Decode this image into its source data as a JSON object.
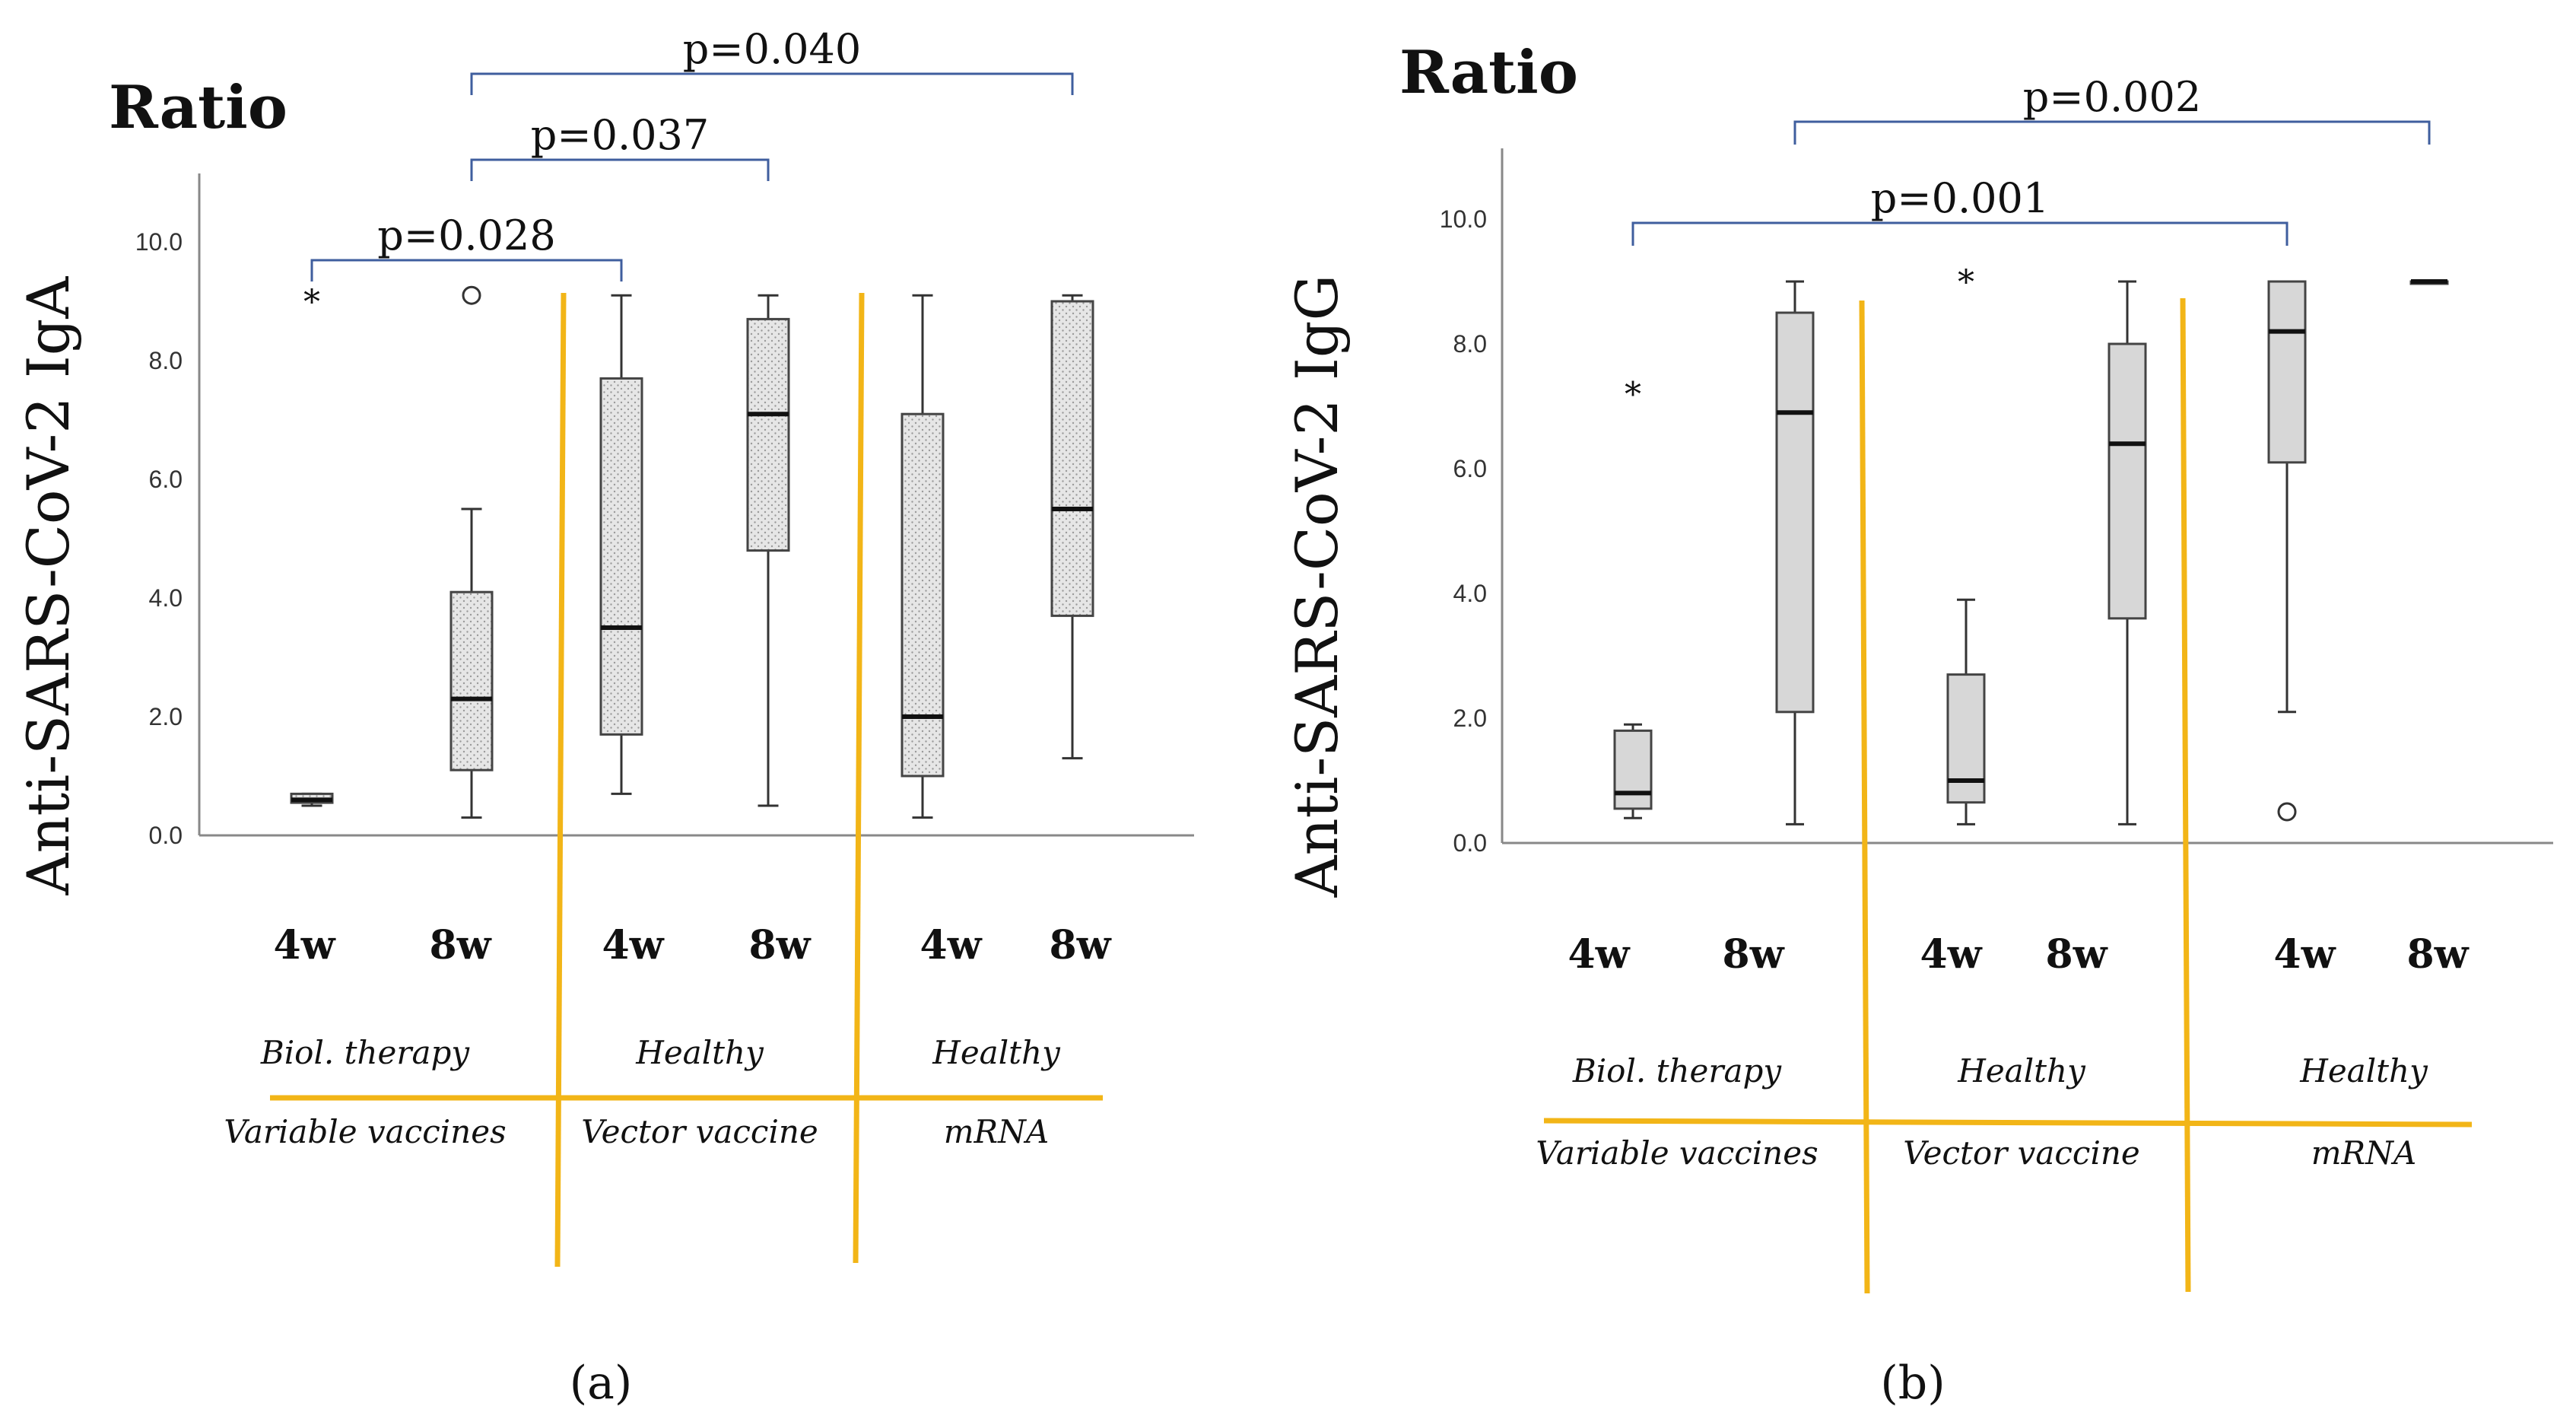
{
  "chart_data": [
    {
      "type": "box",
      "caption": "(a)",
      "title": "Ratio",
      "ylabel": "Anti-SARS-CoV-2 IgA",
      "ylim": [
        0,
        10
      ],
      "yticks": [
        "0.0",
        "2.0",
        "4.0",
        "6.0",
        "8.0",
        "10.0"
      ],
      "categories": [
        "4w",
        "8w",
        "4w",
        "8w",
        "4w",
        "8w"
      ],
      "groups": [
        {
          "top": "Biol. therapy",
          "bottom": "Variable vaccines"
        },
        {
          "top": "Healthy",
          "bottom": "Vector vaccine"
        },
        {
          "top": "Healthy",
          "bottom": "mRNA"
        }
      ],
      "boxes": [
        {
          "min": 0.5,
          "q1": 0.55,
          "median": 0.6,
          "q3": 0.7,
          "max": 0.7,
          "outliers": [
            {
              "value": 9.0,
              "marker": "star"
            }
          ]
        },
        {
          "min": 0.3,
          "q1": 1.1,
          "median": 2.3,
          "q3": 4.1,
          "max": 5.5,
          "outliers": [
            {
              "value": 9.1,
              "marker": "circle"
            }
          ]
        },
        {
          "min": 0.7,
          "q1": 1.7,
          "median": 3.5,
          "q3": 7.7,
          "max": 9.1,
          "outliers": []
        },
        {
          "min": 0.5,
          "q1": 4.8,
          "median": 7.1,
          "q3": 8.7,
          "max": 9.1,
          "outliers": []
        },
        {
          "min": 0.3,
          "q1": 1.0,
          "median": 2.0,
          "q3": 7.1,
          "max": 9.1,
          "outliers": []
        },
        {
          "min": 1.3,
          "q1": 3.7,
          "median": 5.5,
          "q3": 9.0,
          "max": 9.1,
          "outliers": []
        }
      ],
      "comparisons": [
        {
          "from": 0,
          "to": 2,
          "label": "p=0.028"
        },
        {
          "from": 1,
          "to": 3,
          "label": "p=0.037"
        },
        {
          "from": 1,
          "to": 5,
          "label": "p=0.040"
        }
      ],
      "colors": {
        "box_fill": "#e4e4e4",
        "bracket": "#3f5e9e",
        "divider": "#f2b517"
      }
    },
    {
      "type": "box",
      "caption": "(b)",
      "title": "Ratio",
      "ylabel": "Anti-SARS-CoV-2 IgG",
      "ylim": [
        0,
        10
      ],
      "yticks": [
        "0.0",
        "2.0",
        "4.0",
        "6.0",
        "8.0",
        "10.0"
      ],
      "categories": [
        "4w",
        "8w",
        "4w",
        "8w",
        "4w",
        "8w"
      ],
      "groups": [
        {
          "top": "Biol. therapy",
          "bottom": "Variable vaccines"
        },
        {
          "top": "Healthy",
          "bottom": "Vector vaccine"
        },
        {
          "top": "Healthy",
          "bottom": "mRNA"
        }
      ],
      "boxes": [
        {
          "min": 0.4,
          "q1": 0.55,
          "median": 0.8,
          "q3": 1.8,
          "max": 1.9,
          "outliers": [
            {
              "value": 7.2,
              "marker": "star"
            }
          ]
        },
        {
          "min": 0.3,
          "q1": 2.1,
          "median": 6.9,
          "q3": 8.5,
          "max": 9.0,
          "outliers": []
        },
        {
          "min": 0.3,
          "q1": 0.65,
          "median": 1.0,
          "q3": 2.7,
          "max": 3.9,
          "outliers": [
            {
              "value": 9.0,
              "marker": "star"
            }
          ]
        },
        {
          "min": 0.3,
          "q1": 3.6,
          "median": 6.4,
          "q3": 8.0,
          "max": 9.0,
          "outliers": []
        },
        {
          "min": 2.1,
          "q1": 6.1,
          "median": 8.2,
          "q3": 9.0,
          "max": 9.0,
          "outliers": [
            {
              "value": 0.5,
              "marker": "circle"
            }
          ]
        },
        {
          "min": 9.0,
          "q1": 9.0,
          "median": 9.0,
          "q3": 9.0,
          "max": 9.0,
          "outliers": []
        }
      ],
      "comparisons": [
        {
          "from": 0,
          "to": 4,
          "label": "p=0.001"
        },
        {
          "from": 1,
          "to": 5,
          "label": "p=0.002"
        }
      ],
      "colors": {
        "box_fill": "#d7d7d7",
        "bracket": "#3f5e9e",
        "divider": "#f2b517"
      }
    }
  ]
}
